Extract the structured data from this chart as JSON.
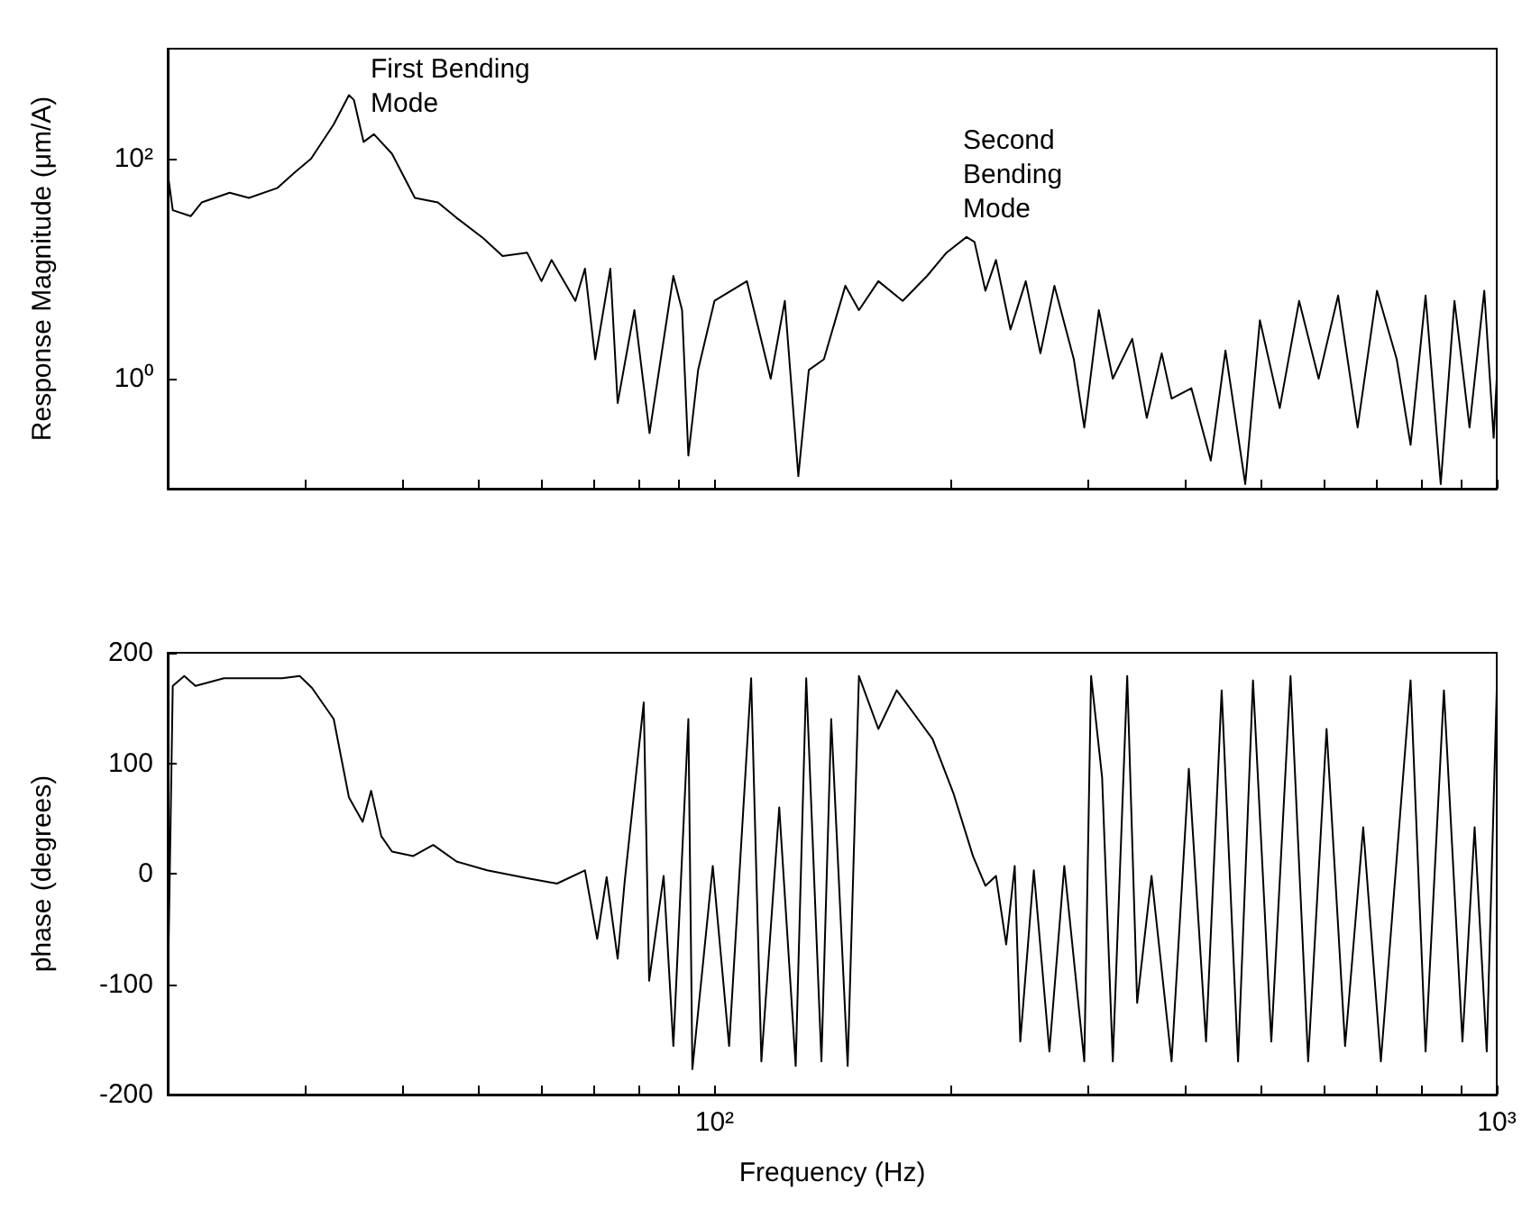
{
  "chart_data": [
    {
      "type": "line",
      "ylabel": "Response Magnitude (μm/A)",
      "log": "xy",
      "grid": false,
      "tick_labels": "y",
      "xlim": [
        20,
        1000
      ],
      "ylim": [
        0.1,
        1000
      ],
      "xticks": [
        {
          "value": 20,
          "label": null
        },
        {
          "value": 30,
          "label": null
        },
        {
          "value": 40,
          "label": null
        },
        {
          "value": 50,
          "label": null
        },
        {
          "value": 60,
          "label": null
        },
        {
          "value": 70,
          "label": null
        },
        {
          "value": 80,
          "label": null
        },
        {
          "value": 90,
          "label": null
        },
        {
          "value": 100,
          "label": null
        },
        {
          "value": 200,
          "label": null
        },
        {
          "value": 300,
          "label": null
        },
        {
          "value": 400,
          "label": null
        },
        {
          "value": 500,
          "label": null
        },
        {
          "value": 600,
          "label": null
        },
        {
          "value": 700,
          "label": null
        },
        {
          "value": 800,
          "label": null
        },
        {
          "value": 900,
          "label": null
        },
        {
          "value": 1000,
          "label": null
        }
      ],
      "yticks": [
        {
          "value": 1,
          "label": "10⁰"
        },
        {
          "value": 100,
          "label": "10²"
        }
      ],
      "annotations": [
        {
          "text": "First Bending\nMode",
          "x": 34.1,
          "y": 378
        },
        {
          "text": "Second\nBending\nMode",
          "x": 210,
          "y": 19.4
        }
      ],
      "series": [
        {
          "color": "#000000",
          "x": [
            20,
            20.3,
            21.4,
            22.1,
            24,
            25.4,
            27.6,
            29,
            30.5,
            32.6,
            34.1,
            34.6,
            35.6,
            36.7,
            38.7,
            41.4,
            44.3,
            46.8,
            50.6,
            53.6,
            57.6,
            60.1,
            61.9,
            66.4,
            68.3,
            70.4,
            73.6,
            75.2,
            79,
            82.6,
            88.6,
            90.9,
            92.6,
            95.3,
            100,
            110,
            118,
            123,
            128,
            132,
            138,
            147,
            153,
            162,
            174,
            187,
            198,
            210,
            215,
            222,
            229,
            239,
            250,
            261,
            272,
            288,
            297,
            310,
            323,
            342,
            357,
            373,
            384,
            407,
            431,
            450,
            477,
            498,
            528,
            559,
            592,
            627,
            664,
            703,
            745,
            776,
            811,
            848,
            883,
            923,
            964,
            991,
            1000
          ],
          "values": [
            74,
            34,
            30,
            40,
            49,
            44,
            54,
            74,
            100,
            205,
            378,
            342,
            142,
            167,
            111,
            44,
            40,
            29,
            19,
            13,
            14,
            7.7,
            12,
            5.1,
            10,
            1.5,
            10,
            0.6,
            4.2,
            0.32,
            8.6,
            4.2,
            0.2,
            1.2,
            5.1,
            7.7,
            1,
            5.1,
            0.13,
            1.2,
            1.5,
            7,
            4.2,
            7.7,
            5.1,
            8.6,
            14,
            19.4,
            17.5,
            6.3,
            12,
            2.8,
            7.7,
            1.7,
            7,
            1.5,
            0.36,
            4.2,
            1,
            2.3,
            0.44,
            1.7,
            0.66,
            0.82,
            0.18,
            1.8,
            0.11,
            3.4,
            0.54,
            5.1,
            1,
            5.7,
            0.36,
            6.3,
            1.5,
            0.25,
            5.7,
            0.11,
            5.1,
            0.36,
            6.3,
            0.29,
            1
          ]
        }
      ]
    },
    {
      "type": "line",
      "xlabel": "Frequency (Hz)",
      "ylabel": "phase (degrees)",
      "log": "x",
      "grid": false,
      "xlim": [
        20,
        1000
      ],
      "ylim": [
        -200,
        200
      ],
      "xticks": [
        {
          "value": 20,
          "label": null
        },
        {
          "value": 30,
          "label": null
        },
        {
          "value": 40,
          "label": null
        },
        {
          "value": 50,
          "label": null
        },
        {
          "value": 60,
          "label": null
        },
        {
          "value": 70,
          "label": null
        },
        {
          "value": 80,
          "label": null
        },
        {
          "value": 90,
          "label": null
        },
        {
          "value": 100,
          "label": "10²"
        },
        {
          "value": 200,
          "label": null
        },
        {
          "value": 300,
          "label": null
        },
        {
          "value": 400,
          "label": null
        },
        {
          "value": 500,
          "label": null
        },
        {
          "value": 600,
          "label": null
        },
        {
          "value": 700,
          "label": null
        },
        {
          "value": 800,
          "label": null
        },
        {
          "value": 900,
          "label": null
        },
        {
          "value": 1000,
          "label": "10³"
        }
      ],
      "yticks": [
        -200,
        -100,
        0,
        100,
        200
      ],
      "series": [
        {
          "color": "#000000",
          "x": [
            20,
            20.3,
            21,
            21.7,
            23.6,
            28,
            29.5,
            30.6,
            32.6,
            34.1,
            35.5,
            36.4,
            37.5,
            38.7,
            41.2,
            43.7,
            46.8,
            51.2,
            57.6,
            62.9,
            68.3,
            70.8,
            72.8,
            75.2,
            76.8,
            81.2,
            82.5,
            86.1,
            88.6,
            92.6,
            93.7,
            99.5,
            104.4,
            111.4,
            114.8,
            121,
            127,
            131,
            137,
            141,
            148,
            153,
            162,
            171,
            182,
            190,
            202,
            214,
            222,
            229,
            236,
            242,
            246,
            256,
            268,
            280,
            297,
            303,
            313,
            323,
            337,
            347,
            362,
            384,
            404,
            425,
            445,
            467,
            488,
            515,
            545,
            574,
            606,
            640,
            675,
            711,
            776,
            811,
            856,
            904,
            937,
            971,
            1000
          ],
          "values": [
            -117,
            170,
            179,
            170,
            177,
            177,
            179,
            168,
            140,
            69,
            47,
            75,
            34,
            20,
            16,
            26,
            11,
            3,
            -4,
            -9,
            3,
            -59,
            -3,
            -77,
            -6,
            155,
            -97,
            -2,
            -156,
            140,
            -177,
            7,
            -156,
            177,
            -170,
            60,
            -174,
            177,
            -170,
            140,
            -174,
            179,
            131,
            166,
            140,
            122,
            73,
            16,
            -11,
            -2,
            -64,
            7,
            -152,
            3,
            -161,
            7,
            -170,
            179,
            87,
            -170,
            179,
            -117,
            -2,
            -170,
            95,
            -152,
            166,
            -170,
            175,
            -152,
            179,
            -170,
            131,
            -156,
            42,
            -170,
            175,
            -161,
            166,
            -152,
            42,
            -161,
            166
          ]
        }
      ]
    }
  ]
}
